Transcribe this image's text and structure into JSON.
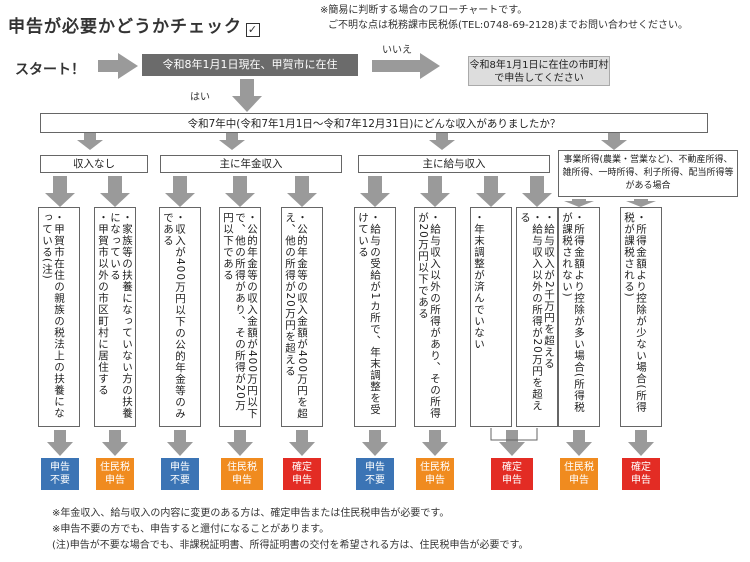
{
  "header": {
    "title": "申告が必要かどうかチェック",
    "check_icon": "check-box-icon",
    "note1": "※簡易に判断する場合のフローチャートです。",
    "note2": "ご不明な点は税務課市民税係(TEL:0748-69-2128)までお問い合わせください。"
  },
  "flow": {
    "start_label": "スタート！",
    "start_question": "令和8年1月1日現在、甲賀市に在住",
    "no_label": "いいえ",
    "no_result": "令和8年1月1日に在住の市町村で申告してください",
    "yes_label": "はい",
    "income_question": "令和7年中(令和7年1月1日～令和7年12月31日)にどんな収入がありましたか？"
  },
  "categories": [
    {
      "label": "収入なし"
    },
    {
      "label": "主に年金収入"
    },
    {
      "label": "主に給与収入"
    },
    {
      "label": "事業所得(農業・営業など)、不動産所得、雑所得、一時所得、利子所得、配当所得等がある場合"
    }
  ],
  "conditions": [
    {
      "text": "・甲賀市在住の親族の税法上の扶養になっている(注)"
    },
    {
      "text": "・家族等の扶養になっていない方の扶養になっている\n・甲賀市以外の市区町村に居住する"
    },
    {
      "text": "・収入が400万円以下の公的年金等のみである"
    },
    {
      "text": "・公的年金等の収入金額が400万円以下で、他の所得があり、その所得が20万円以下である"
    },
    {
      "text": "・公的年金等の収入金額が400万円を超え、他の所得が20万円を超える"
    },
    {
      "text": "・給与の受給が1カ所で、年末調整を受けている"
    },
    {
      "text": "・給与収入以外の所得があり、その所得が20万円以下である"
    },
    {
      "text": "・年末調整が済んでいない"
    },
    {
      "text": "・給与収入が2千万円を超える\n・給与収入以外の所得が20万円を超える"
    },
    {
      "text": "・所得金額より控除が多い場合(所得税が課税されない)"
    },
    {
      "text": "・所得金額より控除が少ない場合(所得税が課税される)"
    }
  ],
  "results": [
    {
      "text": "申告\n不要",
      "color": "#3b74b5"
    },
    {
      "text": "住民税\n申告",
      "color": "#f08b1f"
    },
    {
      "text": "申告\n不要",
      "color": "#3b74b5"
    },
    {
      "text": "住民税\n申告",
      "color": "#f08b1f"
    },
    {
      "text": "確定\n申告",
      "color": "#e32c24"
    },
    {
      "text": "申告\n不要",
      "color": "#3b74b5"
    },
    {
      "text": "住民税\n申告",
      "color": "#f08b1f"
    },
    {
      "text": "確定\n申告",
      "color": "#e32c24"
    },
    {
      "text": "確定\n申告",
      "color": "#e32c24"
    },
    {
      "text": "住民税\n申告",
      "color": "#f08b1f"
    },
    {
      "text": "確定\n申告",
      "color": "#e32c24"
    }
  ],
  "footnotes": [
    "※年金収入、給与収入の内容に変更のある方は、確定申告または住民税申告が必要です。",
    "※申告不要の方でも、申告すると還付になることがあります。",
    "(注)申告が不要な場合でも、非課税証明書、所得証明書の交付を希望される方は、住民税申告が必要です。"
  ]
}
